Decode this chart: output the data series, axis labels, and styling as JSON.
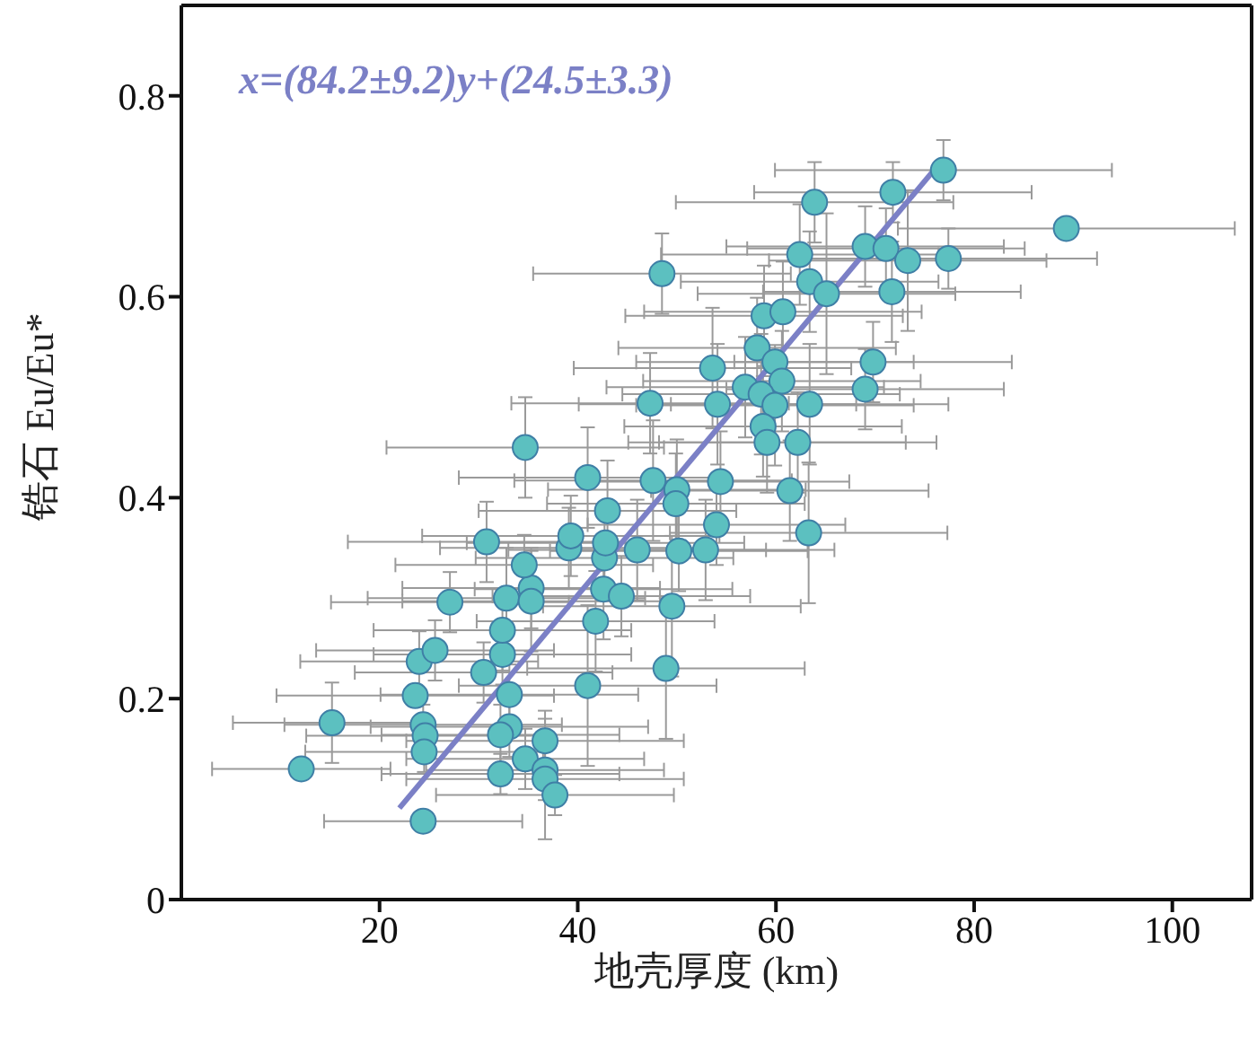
{
  "chart_data": {
    "type": "scatter",
    "xlabel": "地壳厚度 (km)",
    "ylabel": "锆石 Eu/Eu*",
    "annotations": [
      "x=(84.2±9.2)y+(24.5±3.3)"
    ],
    "xlim": [
      0,
      108
    ],
    "xticks": [
      20,
      40,
      60,
      80,
      100
    ],
    "ylim": [
      0,
      0.89
    ],
    "yticks": [
      0,
      0.2,
      0.4,
      0.6,
      0.8
    ],
    "grid": false,
    "legend": false,
    "series": [
      {
        "color": "#5cc0c0",
        "marker": "circle",
        "x": [
          12.1,
          15.2,
          23.6,
          24.4,
          24.6,
          24.5,
          24.4,
          33.1,
          33.1,
          32.2,
          32.2,
          36.7,
          34.7,
          36.7,
          36.7,
          37.7,
          41.0,
          24.0,
          25.6,
          27.1,
          30.5,
          32.4,
          32.4,
          32.8,
          35.3,
          35.3,
          34.6,
          30.8,
          39.1,
          42.6,
          41.8,
          44.4,
          42.7,
          42.8,
          34.7,
          41.0,
          47.6,
          50.0,
          49.9,
          54.4,
          61.4,
          43.0,
          54.0,
          39.3,
          46.0,
          50.2,
          52.9,
          63.3,
          49.5,
          48.9,
          48.5,
          63.4,
          65.1,
          71.7,
          58.8,
          60.7,
          58.1,
          59.9,
          69.8,
          53.6,
          60.6,
          56.9,
          58.5,
          69.0,
          47.3,
          54.1,
          59.9,
          63.4,
          58.7,
          59.1,
          62.2,
          76.9,
          71.8,
          63.9,
          89.3,
          62.4,
          69.0,
          71.1,
          73.3,
          77.4
        ],
        "values": [
          0.13,
          0.176,
          0.203,
          0.174,
          0.163,
          0.147,
          0.078,
          0.204,
          0.172,
          0.164,
          0.125,
          0.158,
          0.14,
          0.129,
          0.12,
          0.104,
          0.213,
          0.237,
          0.248,
          0.296,
          0.226,
          0.244,
          0.268,
          0.3,
          0.31,
          0.297,
          0.333,
          0.356,
          0.35,
          0.309,
          0.277,
          0.302,
          0.34,
          0.355,
          0.45,
          0.42,
          0.417,
          0.408,
          0.394,
          0.416,
          0.407,
          0.387,
          0.373,
          0.362,
          0.348,
          0.347,
          0.348,
          0.365,
          0.292,
          0.23,
          0.623,
          0.615,
          0.603,
          0.605,
          0.581,
          0.585,
          0.549,
          0.535,
          0.535,
          0.529,
          0.516,
          0.51,
          0.503,
          0.508,
          0.494,
          0.493,
          0.492,
          0.493,
          0.471,
          0.455,
          0.455,
          0.726,
          0.704,
          0.694,
          0.668,
          0.642,
          0.65,
          0.648,
          0.636,
          0.638
        ],
        "xerrors": [
          9,
          10,
          14,
          14,
          12,
          12,
          10,
          13,
          14,
          12,
          12,
          14,
          12,
          12,
          14,
          12,
          13,
          12,
          12,
          12,
          13,
          13,
          13,
          14,
          13,
          13,
          13,
          14,
          13,
          13,
          12,
          13,
          13,
          14,
          14,
          13,
          14,
          13,
          13,
          13,
          14,
          13,
          13,
          15,
          13,
          13,
          13,
          14,
          13,
          14,
          13,
          13,
          13,
          13,
          14,
          14,
          14,
          14,
          14,
          14,
          14,
          14,
          14,
          14,
          14,
          14,
          14,
          14,
          14,
          14,
          14,
          17,
          14,
          14,
          17,
          14,
          14,
          14,
          14,
          15
        ],
        "errors": [
          0.01,
          0.04,
          null,
          0.02,
          null,
          0.02,
          0.01,
          0.03,
          0.03,
          0.03,
          0.02,
          0.03,
          0.03,
          0.03,
          0.06,
          0.02,
          0.08,
          0.03,
          0.03,
          0.03,
          0.03,
          0.03,
          0.04,
          0.05,
          0.04,
          0.05,
          0.03,
          0.04,
          0.04,
          0.05,
          0.05,
          0.04,
          0.04,
          null,
          0.05,
          0.05,
          0.06,
          0.05,
          0.05,
          0.05,
          0.05,
          0.05,
          0.04,
          0.04,
          0.05,
          0.04,
          0.05,
          0.07,
          0.07,
          0.07,
          0.04,
          0.05,
          0.08,
          0.05,
          0.05,
          0.05,
          0.05,
          null,
          0.04,
          0.06,
          0.05,
          0.05,
          0.06,
          0.04,
          0.05,
          0.06,
          0.06,
          0.06,
          0.05,
          0.05,
          0.05,
          0.03,
          0.03,
          0.04,
          0.01,
          0.05,
          0.04,
          0.04,
          0.07,
          0.03
        ]
      },
      {
        "type": "line",
        "color": "#7b80c6",
        "x": [
          22.0,
          76.7
        ],
        "values": [
          0.091,
          0.735
        ]
      }
    ]
  }
}
